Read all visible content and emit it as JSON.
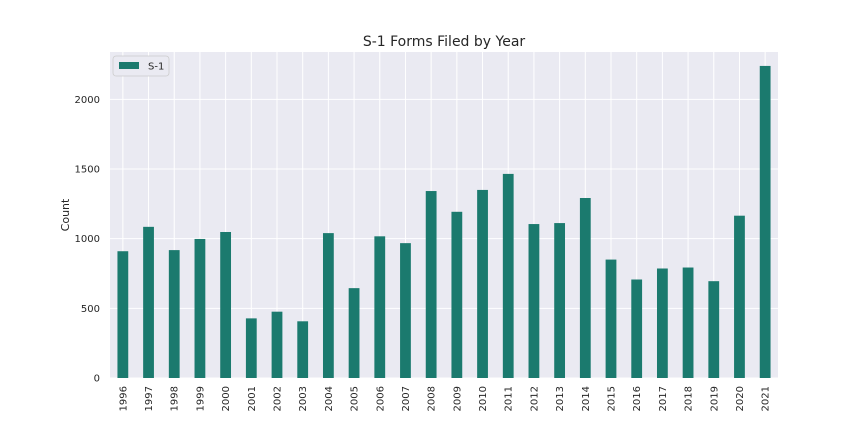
{
  "chart_data": {
    "type": "bar",
    "title": "S-1 Forms Filed by Year",
    "xlabel": "",
    "ylabel": "Count",
    "categories": [
      "1996",
      "1997",
      "1998",
      "1999",
      "2000",
      "2001",
      "2002",
      "2003",
      "2004",
      "2005",
      "2006",
      "2007",
      "2008",
      "2009",
      "2010",
      "2011",
      "2012",
      "2013",
      "2014",
      "2015",
      "2016",
      "2017",
      "2018",
      "2019",
      "2020",
      "2021"
    ],
    "series": [
      {
        "name": "S-1",
        "color": "#1b7a6e",
        "values": [
          910,
          1085,
          918,
          998,
          1048,
          428,
          476,
          407,
          1040,
          645,
          1017,
          968,
          1342,
          1193,
          1350,
          1465,
          1105,
          1112,
          1292,
          850,
          707,
          786,
          793,
          695,
          1165,
          2240
        ]
      }
    ],
    "ylim": [
      0,
      2340
    ],
    "yticks": [
      0,
      500,
      1000,
      1500,
      2000
    ],
    "grid": true,
    "legend_position": "top-left"
  }
}
